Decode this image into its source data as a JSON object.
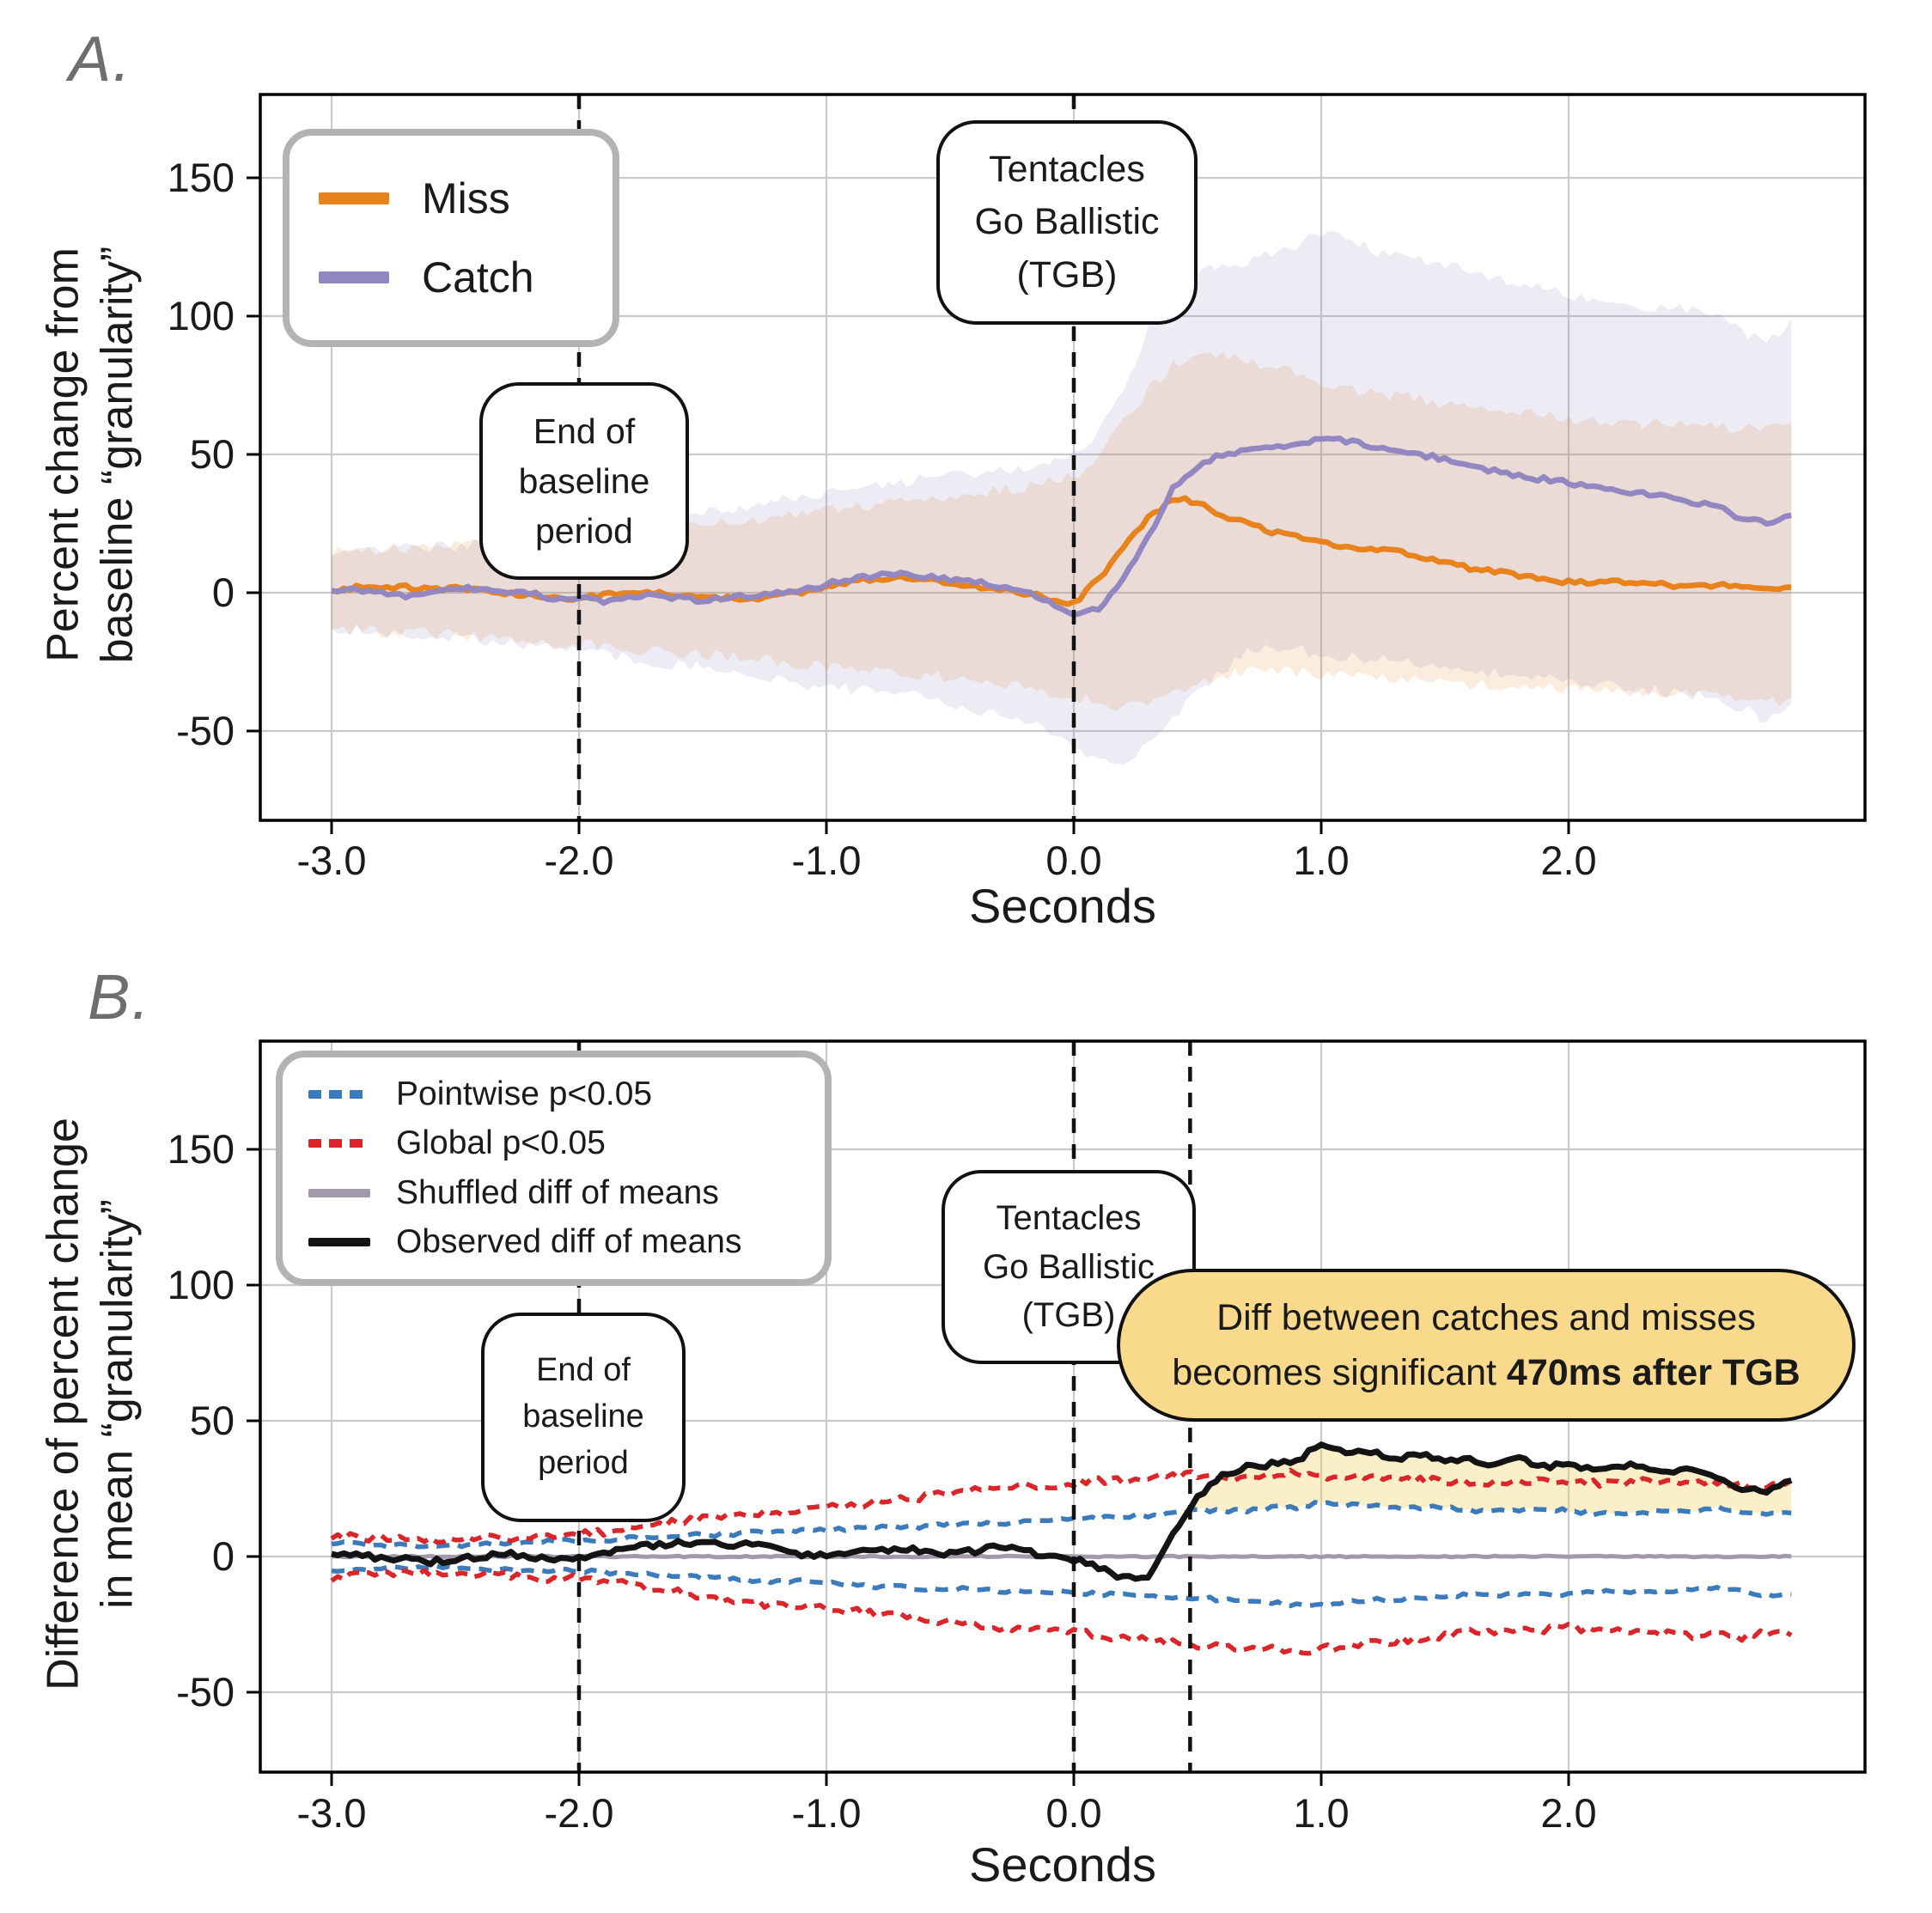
{
  "figure_background": "#ffffff",
  "panels": [
    {
      "label": "A."
    },
    {
      "label": "B."
    }
  ],
  "legendA": {
    "entries": [
      {
        "label": "Miss",
        "color": "#E8821C",
        "style": "solid"
      },
      {
        "label": "Catch",
        "color": "#9287C0",
        "style": "solid"
      }
    ]
  },
  "legendB": {
    "entries": [
      {
        "label": "Pointwise p<0.05",
        "color": "#3C7BBB",
        "style": "dashed"
      },
      {
        "label": "Global p<0.05",
        "color": "#D9262B",
        "style": "dashed"
      },
      {
        "label": "Shuffled diff of means",
        "color": "#A29AAB",
        "style": "solid"
      },
      {
        "label": "Observed diff of means",
        "color": "#141414",
        "style": "solid"
      }
    ]
  },
  "annotations": {
    "end_baseline": "End of\nbaseline\nperiod",
    "tgb": "Tentacles\nGo Ballistic\n(TGB)",
    "callout_normal": "Diff between catches and misses\nbecomes significant ",
    "callout_bold": "470ms after TGB"
  },
  "chart_data": [
    {
      "type": "line",
      "panel": "A",
      "xlabel": "Seconds",
      "ylabel": "Percent change from\nbaseline “granularity”",
      "x_start": -3.0,
      "x_step": 0.1,
      "xlim": [
        -3.29,
        3.2
      ],
      "ylim": [
        -82,
        181
      ],
      "grid": true,
      "xticks": {
        "values": [
          -3,
          -2,
          -1,
          0,
          1,
          2
        ],
        "labels": [
          "-3.0",
          "-2.0",
          "-1.0",
          "0.0",
          "1.0",
          "2.0"
        ]
      },
      "yticks": {
        "values": [
          -50,
          0,
          50,
          100,
          150
        ],
        "labels": [
          "-50",
          "0",
          "50",
          "100",
          "150"
        ]
      },
      "vlines": [
        -2.0,
        0.0
      ],
      "bands": [
        {
          "name": "Miss CI",
          "fill": "rgba(232,130,28,0.15)",
          "noise": 2.2,
          "upper": [
            15,
            15,
            16,
            16,
            17,
            17,
            18,
            18,
            19,
            20,
            20,
            21,
            22,
            23,
            24,
            24,
            25,
            26,
            28,
            29,
            30,
            31,
            32,
            33,
            34,
            35,
            36,
            37,
            38,
            40,
            42,
            50,
            62,
            73,
            82,
            88,
            86,
            84,
            82,
            79,
            76,
            74,
            72,
            71,
            70,
            68,
            67,
            66,
            65,
            64,
            63,
            62,
            62,
            61,
            61,
            60,
            60,
            59,
            60,
            62
          ],
          "lower": [
            -13,
            -13,
            -14,
            -14,
            -15,
            -15,
            -16,
            -16,
            -17,
            -18,
            -18,
            -19,
            -20,
            -21,
            -22,
            -22,
            -23,
            -24,
            -25,
            -26,
            -27,
            -28,
            -28,
            -29,
            -30,
            -31,
            -32,
            -33,
            -34,
            -36,
            -38,
            -40,
            -42,
            -40,
            -36,
            -32,
            -30,
            -28,
            -28,
            -29,
            -30,
            -30,
            -31,
            -31,
            -32,
            -32,
            -33,
            -33,
            -34,
            -34,
            -35,
            -35,
            -36,
            -36,
            -37,
            -37,
            -38,
            -39,
            -40,
            -38
          ]
        },
        {
          "name": "Catch CI",
          "fill": "rgba(146,135,192,0.17)",
          "noise": 2.2,
          "upper": [
            14,
            14,
            15,
            16,
            16,
            17,
            18,
            19,
            20,
            21,
            22,
            24,
            26,
            27,
            28,
            29,
            30,
            31,
            33,
            35,
            36,
            38,
            39,
            40,
            41,
            42,
            43,
            44,
            45,
            47,
            50,
            58,
            75,
            95,
            108,
            115,
            118,
            120,
            122,
            126,
            130,
            128,
            124,
            122,
            120,
            118,
            116,
            114,
            112,
            110,
            108,
            106,
            105,
            104,
            103,
            102,
            100,
            95,
            90,
            99
          ],
          "lower": [
            -14,
            -14,
            -15,
            -15,
            -16,
            -16,
            -17,
            -18,
            -19,
            -20,
            -21,
            -22,
            -24,
            -25,
            -26,
            -27,
            -28,
            -30,
            -32,
            -33,
            -34,
            -35,
            -36,
            -37,
            -38,
            -40,
            -42,
            -44,
            -46,
            -50,
            -55,
            -60,
            -62,
            -55,
            -45,
            -35,
            -28,
            -22,
            -20,
            -21,
            -22,
            -23,
            -24,
            -25,
            -26,
            -27,
            -28,
            -29,
            -30,
            -31,
            -32,
            -33,
            -34,
            -35,
            -36,
            -37,
            -39,
            -42,
            -46,
            -40
          ]
        }
      ],
      "series": [
        {
          "name": "Miss",
          "color": "#E8821C",
          "width": 6.5,
          "dash": null,
          "noise": 0.9,
          "values": [
            1,
            2,
            1,
            2,
            1,
            2,
            1,
            0,
            -1,
            -2,
            -2,
            -1,
            0,
            0,
            -1,
            -1,
            -2,
            -2,
            -1,
            0,
            2,
            4,
            5,
            6,
            5,
            3,
            2,
            1,
            0,
            -2,
            -4,
            5,
            16,
            27,
            34,
            33,
            28,
            25,
            22,
            20,
            18,
            17,
            16,
            15,
            13,
            11,
            9,
            8,
            6,
            5,
            4,
            3,
            4,
            3,
            3,
            2,
            3,
            2,
            2,
            2
          ]
        },
        {
          "name": "Catch",
          "color": "#9287C0",
          "width": 6.5,
          "dash": null,
          "noise": 0.9,
          "values": [
            0,
            1,
            0,
            -1,
            0,
            1,
            2,
            1,
            0,
            -2,
            -2,
            -3,
            -2,
            -1,
            -2,
            -3,
            -2,
            -1,
            0,
            1,
            3,
            5,
            6,
            7,
            6,
            5,
            4,
            2,
            0,
            -3,
            -8,
            -6,
            5,
            20,
            38,
            46,
            50,
            51,
            52,
            53,
            56,
            55,
            53,
            51,
            50,
            48,
            46,
            44,
            42,
            41,
            40,
            38,
            37,
            36,
            35,
            33,
            31,
            27,
            25,
            28
          ]
        }
      ]
    },
    {
      "type": "line",
      "panel": "B",
      "xlabel": "Seconds",
      "ylabel": "Difference of percent change\nin mean “granularity”",
      "x_start": -3.0,
      "x_step": 0.1,
      "xlim": [
        -3.29,
        3.2
      ],
      "ylim": [
        -79,
        190
      ],
      "grid": true,
      "xticks": {
        "values": [
          -3,
          -2,
          -1,
          0,
          1,
          2
        ],
        "labels": [
          "-3.0",
          "-2.0",
          "-1.0",
          "0.0",
          "1.0",
          "2.0"
        ]
      },
      "yticks": {
        "values": [
          -50,
          0,
          50,
          100,
          150
        ],
        "labels": [
          "-50",
          "0",
          "50",
          "100",
          "150"
        ]
      },
      "vlines": [
        -2.0,
        0.0,
        0.47
      ],
      "significance_onset_s": 0.47,
      "fill_between": {
        "top": "Observed diff of means",
        "bottom": "Pointwise upper",
        "x_from": 0.47,
        "fill": "rgba(244,205,93,0.33)"
      },
      "series": [
        {
          "name": "Shuffled diff of means",
          "color": "#A29AAB",
          "width": 5,
          "dash": null,
          "noise": 0.25,
          "values": 0
        },
        {
          "name": "Pointwise upper",
          "color": "#3C7BBB",
          "width": 5.5,
          "dash": [
            15,
            10
          ],
          "noise": 0.7,
          "values": [
            5,
            5,
            4,
            4,
            4,
            4,
            5,
            5,
            5,
            6,
            6,
            6,
            7,
            7,
            8,
            8,
            8,
            9,
            9,
            10,
            10,
            10,
            11,
            11,
            11,
            12,
            12,
            12,
            13,
            13,
            14,
            14,
            15,
            15,
            16,
            17,
            17,
            17,
            18,
            18,
            20,
            19,
            19,
            18,
            18,
            18,
            17,
            17,
            17,
            17,
            17,
            16,
            16,
            16,
            17,
            17,
            18,
            16,
            16,
            16
          ]
        },
        {
          "name": "Pointwise lower",
          "color": "#3C7BBB",
          "width": 5.5,
          "dash": [
            15,
            10
          ],
          "noise": 0.7,
          "values": [
            -5,
            -5,
            -4,
            -4,
            -4,
            -4,
            -5,
            -5,
            -5,
            -5,
            -5,
            -6,
            -6,
            -7,
            -7,
            -8,
            -8,
            -9,
            -9,
            -9,
            -10,
            -10,
            -11,
            -11,
            -12,
            -12,
            -12,
            -13,
            -13,
            -13,
            -13,
            -14,
            -14,
            -15,
            -15,
            -15,
            -16,
            -16,
            -17,
            -18,
            -18,
            -17,
            -16,
            -16,
            -15,
            -15,
            -14,
            -14,
            -14,
            -14,
            -14,
            -13,
            -13,
            -13,
            -13,
            -12,
            -12,
            -13,
            -14,
            -14
          ]
        },
        {
          "name": "Global upper",
          "color": "#D9262B",
          "width": 5.5,
          "dash": [
            14,
            9
          ],
          "noise": 1.4,
          "values": [
            8,
            7,
            7,
            6,
            6,
            6,
            7,
            7,
            7,
            8,
            8,
            9,
            10,
            11,
            13,
            14,
            15,
            16,
            16,
            17,
            18,
            19,
            20,
            21,
            22,
            23,
            24,
            25,
            26,
            26,
            27,
            28,
            28,
            29,
            30,
            30,
            29,
            29,
            30,
            31,
            30,
            29,
            29,
            28,
            28,
            28,
            27,
            27,
            27,
            28,
            28,
            27,
            27,
            28,
            28,
            28,
            27,
            27,
            26,
            28
          ]
        },
        {
          "name": "Global lower",
          "color": "#D9262B",
          "width": 5.5,
          "dash": [
            14,
            9
          ],
          "noise": 1.4,
          "values": [
            -8,
            -7,
            -7,
            -6,
            -6,
            -6,
            -7,
            -7,
            -8,
            -8,
            -8,
            -9,
            -10,
            -12,
            -13,
            -15,
            -16,
            -17,
            -18,
            -19,
            -19,
            -20,
            -21,
            -22,
            -23,
            -24,
            -25,
            -26,
            -27,
            -27,
            -28,
            -29,
            -30,
            -31,
            -32,
            -33,
            -33,
            -34,
            -34,
            -35,
            -34,
            -33,
            -32,
            -31,
            -30,
            -29,
            -28,
            -28,
            -27,
            -27,
            -26,
            -27,
            -27,
            -28,
            -28,
            -29,
            -29,
            -30,
            -28,
            -29
          ]
        },
        {
          "name": "Observed diff of means",
          "color": "#141414",
          "width": 7,
          "dash": null,
          "noise": 1.0,
          "values": [
            0,
            1,
            -1,
            0,
            -2,
            -1,
            0,
            1,
            0,
            -1,
            0,
            1,
            3,
            4,
            5,
            5,
            4,
            5,
            3,
            1,
            0,
            1,
            2,
            3,
            2,
            1,
            2,
            4,
            2,
            0,
            -1,
            -4,
            -8,
            -7,
            8,
            22,
            30,
            33,
            34,
            35,
            42,
            38,
            39,
            36,
            38,
            35,
            36,
            34,
            36,
            33,
            34,
            32,
            34,
            33,
            31,
            32,
            29,
            25,
            24,
            28
          ]
        }
      ]
    }
  ],
  "style": {
    "grid_color": "#c9c9c9",
    "spine_color": "#000000",
    "tick_label_color": "#1a1a1a",
    "vline_color": "#111111",
    "callout_bg": "#F9D98C",
    "annotation_border": "#111111",
    "legend_border": "#b3b3b3",
    "panel_label_color": "#6e6e6e"
  }
}
